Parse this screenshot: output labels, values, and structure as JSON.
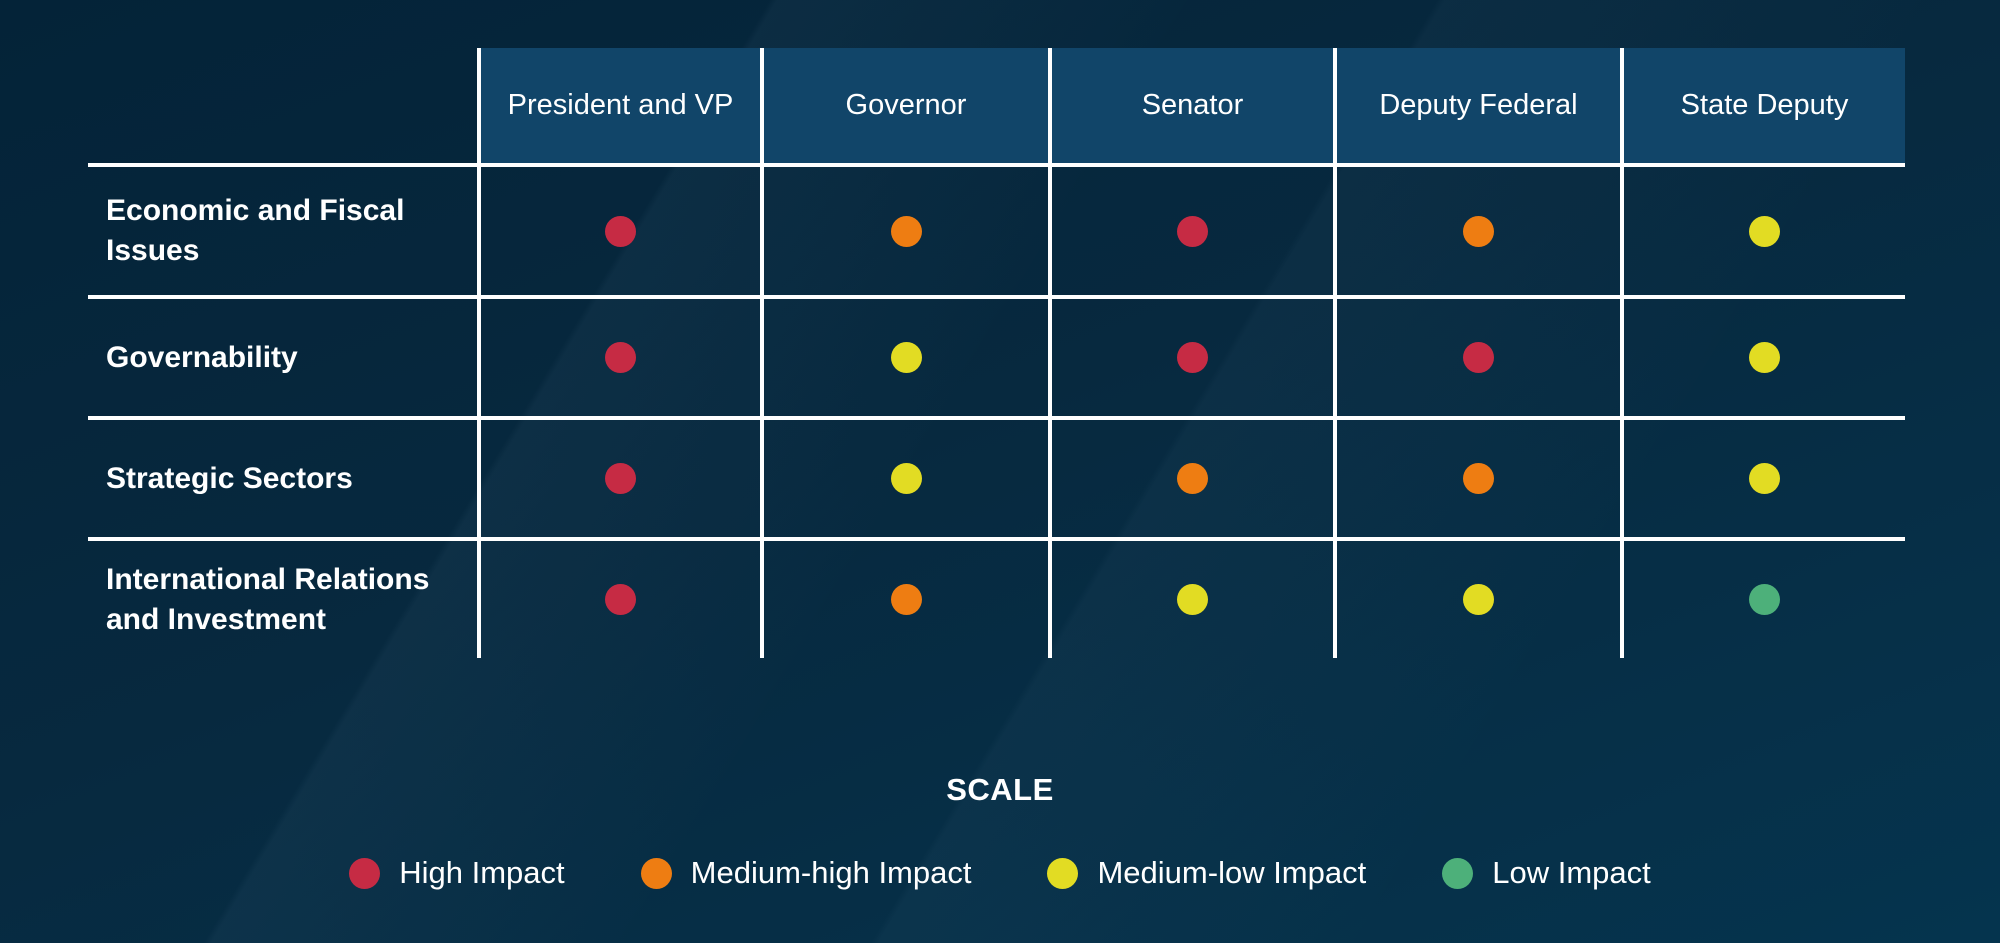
{
  "chart_data": {
    "type": "heatmap",
    "columns": [
      "President and VP",
      "Governor",
      "Senator",
      "Deputy Federal",
      "State Deputy"
    ],
    "rows": [
      "Economic and Fiscal Issues",
      "Governability",
      "Strategic Sectors",
      "International Relations and Investment"
    ],
    "values": [
      [
        "high",
        "medium-high",
        "high",
        "medium-high",
        "medium-low"
      ],
      [
        "high",
        "medium-low",
        "high",
        "high",
        "medium-low"
      ],
      [
        "high",
        "medium-low",
        "medium-high",
        "medium-high",
        "medium-low"
      ],
      [
        "high",
        "medium-high",
        "medium-low",
        "medium-low",
        "low"
      ]
    ],
    "value_labels": {
      "high": "High Impact",
      "medium-high": "Medium-high Impact",
      "medium-low": "Medium-low Impact",
      "low": "Low Impact"
    },
    "legend_title": "SCALE",
    "legend_order": [
      "high",
      "medium-high",
      "medium-low",
      "low"
    ],
    "legend_position": "bottom",
    "colors": {
      "high": "#c62b44",
      "medium-high": "#ee7d12",
      "medium-low": "#e2dc23",
      "low": "#4db07a"
    },
    "theme": {
      "background_top": "#042338",
      "background_bottom": "#05344e",
      "header_background": "#114569",
      "grid_line": "#ffffff",
      "text": "#ffffff"
    }
  }
}
